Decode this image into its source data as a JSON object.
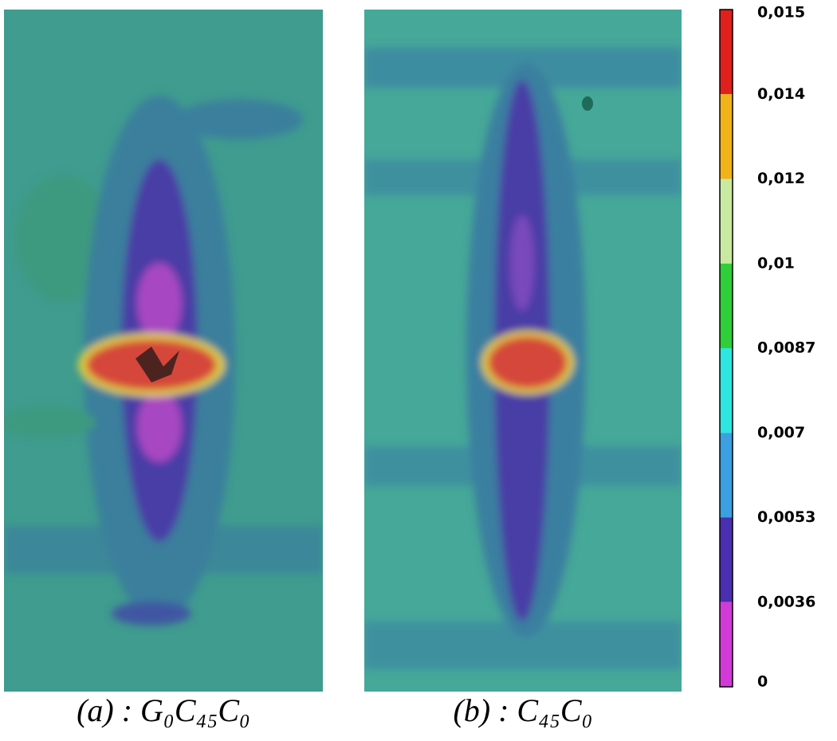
{
  "panels": [
    {
      "caption": "(a) : G₀C₄₅C₀"
    },
    {
      "caption": "(b) : C₄₅C₀"
    }
  ],
  "colorbar": {
    "labels": [
      "0,015",
      "0,014",
      "0,012",
      "0,01",
      "0,0087",
      "0,007",
      "0,0053",
      "0,0036",
      "0"
    ],
    "colors": [
      "#e0201c",
      "#f2b21a",
      "#c8eaa0",
      "#2fcf3a",
      "#2ee6e0",
      "#3aa0e0",
      "#4a2fb0",
      "#d23ad8"
    ]
  }
}
